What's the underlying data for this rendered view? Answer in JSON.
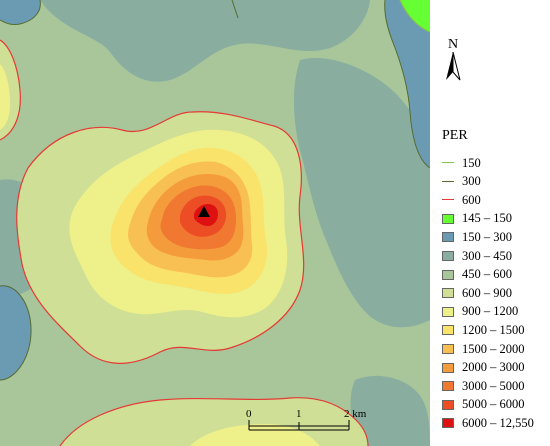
{
  "legend": {
    "title": "PER",
    "contours": [
      {
        "label": "150",
        "color": "#8bc34a"
      },
      {
        "label": "300",
        "color": "#556b2f"
      },
      {
        "label": "600",
        "color": "#e53935"
      }
    ],
    "classes": [
      {
        "label": "145 – 150",
        "color": "#66ff33"
      },
      {
        "label": "150 – 300",
        "color": "#6b9bb3"
      },
      {
        "label": "300 – 450",
        "color": "#89aea0"
      },
      {
        "label": "450 – 600",
        "color": "#a9c59a"
      },
      {
        "label": "600 – 900",
        "color": "#cfdf96"
      },
      {
        "label": "900 – 1200",
        "color": "#eef08a"
      },
      {
        "label": "1200 – 1500",
        "color": "#f9e36a"
      },
      {
        "label": "1500 – 2000",
        "color": "#f8bf52"
      },
      {
        "label": "2000 – 3000",
        "color": "#f49b3c"
      },
      {
        "label": "3000 – 5000",
        "color": "#f07830"
      },
      {
        "label": "5000 – 6000",
        "color": "#ec4d24"
      },
      {
        "label": "6000 – 12,550",
        "color": "#dd1111"
      }
    ]
  },
  "north_arrow": {
    "letter": "N"
  },
  "scale_bar": {
    "ticks": [
      "0",
      "1",
      "2 km"
    ]
  },
  "marker": {
    "icon": "triangle-marker-icon"
  }
}
